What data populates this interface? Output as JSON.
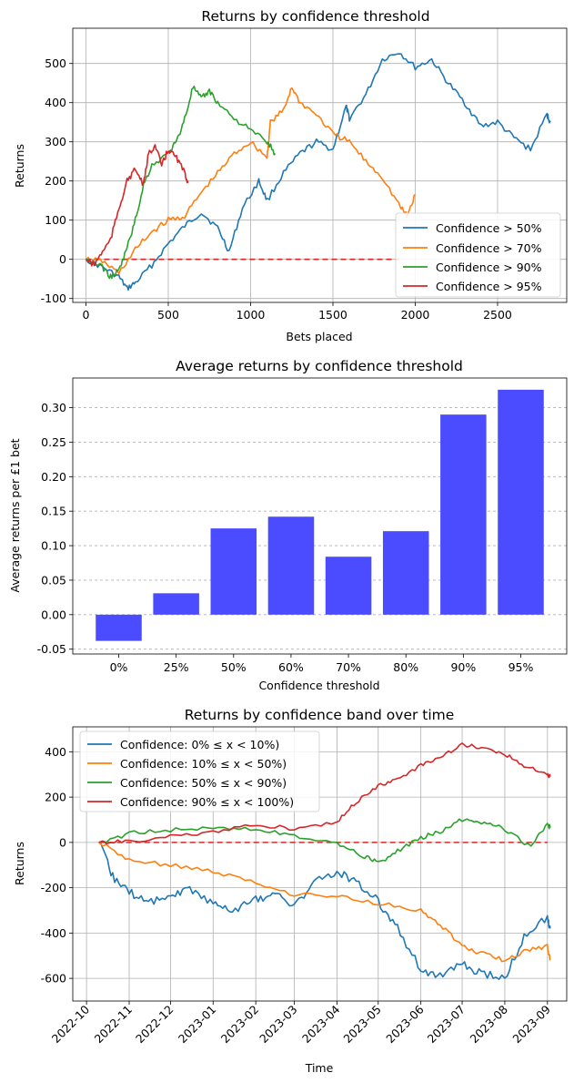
{
  "chart_data": [
    {
      "type": "line",
      "title": "Returns by confidence threshold",
      "xlabel": "Bets placed",
      "ylabel": "Returns",
      "xlim": [
        -80,
        2920
      ],
      "ylim": [
        -110,
        590
      ],
      "xticks": [
        0,
        500,
        1000,
        1500,
        2000,
        2500
      ],
      "yticks": [
        -100,
        0,
        100,
        200,
        300,
        400,
        500
      ],
      "grid": true,
      "legend_position": "lower-right",
      "colors": [
        "#1f77b4",
        "#ff7f0e",
        "#2ca02c",
        "#d62728"
      ],
      "zero_line": {
        "color": "#d62728",
        "style": "dashed",
        "x": [
          0,
          1900
        ],
        "y": 0
      },
      "series": [
        {
          "name": "Confidence > 50%",
          "x": [
            0,
            100,
            200,
            250,
            300,
            400,
            500,
            600,
            700,
            800,
            870,
            950,
            1050,
            1100,
            1200,
            1300,
            1400,
            1500,
            1580,
            1600,
            1700,
            1800,
            1900,
            2000,
            2100,
            2200,
            2300,
            2400,
            2500,
            2600,
            2700,
            2800,
            2820
          ],
          "values": [
            0,
            -20,
            -45,
            -75,
            -60,
            -15,
            40,
            85,
            120,
            80,
            20,
            130,
            200,
            150,
            220,
            270,
            300,
            280,
            390,
            360,
            420,
            510,
            530,
            490,
            510,
            450,
            400,
            340,
            350,
            310,
            280,
            370,
            350
          ]
        },
        {
          "name": "Confidence > 70%",
          "x": [
            0,
            100,
            200,
            300,
            400,
            500,
            600,
            700,
            800,
            900,
            1000,
            1100,
            1120,
            1200,
            1250,
            1300,
            1400,
            1500,
            1600,
            1700,
            1800,
            1900,
            1950,
            2000
          ],
          "values": [
            0,
            -5,
            -35,
            25,
            70,
            100,
            110,
            170,
            220,
            270,
            300,
            260,
            350,
            380,
            440,
            400,
            370,
            320,
            300,
            250,
            210,
            140,
            110,
            165
          ]
        },
        {
          "name": "Confidence > 90%",
          "x": [
            0,
            100,
            150,
            200,
            250,
            300,
            350,
            400,
            500,
            550,
            600,
            650,
            700,
            750,
            800,
            900,
            1000,
            1100,
            1150
          ],
          "values": [
            0,
            -20,
            -45,
            -30,
            30,
            100,
            190,
            240,
            270,
            300,
            360,
            440,
            410,
            430,
            400,
            360,
            330,
            300,
            270
          ]
        },
        {
          "name": "Confidence > 95%",
          "x": [
            0,
            50,
            100,
            150,
            200,
            250,
            300,
            350,
            380,
            420,
            460,
            500,
            550,
            600,
            620
          ],
          "values": [
            0,
            -15,
            20,
            50,
            130,
            200,
            230,
            190,
            270,
            290,
            240,
            280,
            260,
            220,
            195
          ]
        }
      ]
    },
    {
      "type": "bar",
      "title": "Average returns by confidence threshold",
      "xlabel": "Confidence threshold",
      "ylabel": "Average returns per £1 bet",
      "categories": [
        "0%",
        "25%",
        "50%",
        "60%",
        "70%",
        "80%",
        "90%",
        "95%"
      ],
      "values": [
        -0.038,
        0.031,
        0.125,
        0.142,
        0.084,
        0.121,
        0.29,
        0.326
      ],
      "ylim": [
        -0.057,
        0.343
      ],
      "yticks": [
        "-0.05",
        "0.00",
        "0.05",
        "0.10",
        "0.15",
        "0.20",
        "0.25",
        "0.30"
      ],
      "grid": "y-dashed",
      "color": "#4b4bff"
    },
    {
      "type": "line",
      "title": "Returns by confidence band over time",
      "xlabel": "Time",
      "ylabel": "Returns",
      "xlim": [
        "2022-09-21",
        "2023-09-15"
      ],
      "ylim": [
        -700,
        510
      ],
      "xticks": [
        "2022-10",
        "2022-11",
        "2022-12",
        "2023-01",
        "2023-02",
        "2023-03",
        "2023-04",
        "2023-05",
        "2023-06",
        "2023-07",
        "2023-08",
        "2023-09"
      ],
      "yticks": [
        -600,
        -400,
        -200,
        0,
        200,
        400
      ],
      "grid": true,
      "legend_position": "upper-left",
      "colors": [
        "#1f77b4",
        "#ff7f0e",
        "#2ca02c",
        "#d62728"
      ],
      "zero_line": {
        "color": "#d62728",
        "style": "dashed",
        "x": [
          "2022-10-10",
          "2023-09-01"
        ],
        "y": 0
      },
      "series": [
        {
          "name": "Confidence: 0% ≤ x < 10%)",
          "x": [
            "2022-10-10",
            "2022-10-20",
            "2022-11-01",
            "2022-11-15",
            "2022-12-01",
            "2022-12-15",
            "2023-01-01",
            "2023-01-15",
            "2023-02-01",
            "2023-02-15",
            "2023-03-01",
            "2023-03-15",
            "2023-04-01",
            "2023-04-15",
            "2023-05-01",
            "2023-05-15",
            "2023-06-01",
            "2023-06-15",
            "2023-07-01",
            "2023-07-15",
            "2023-08-01",
            "2023-08-15",
            "2023-09-01",
            "2023-09-03"
          ],
          "values": [
            0,
            -150,
            -220,
            -260,
            -240,
            -200,
            -270,
            -300,
            -250,
            -230,
            -280,
            -180,
            -130,
            -170,
            -260,
            -380,
            -560,
            -590,
            -540,
            -580,
            -600,
            -420,
            -330,
            -380
          ]
        },
        {
          "name": "Confidence: 10% ≤ x < 50%)",
          "x": [
            "2022-10-10",
            "2022-11-01",
            "2022-12-01",
            "2023-01-01",
            "2023-02-01",
            "2023-03-01",
            "2023-04-01",
            "2023-05-01",
            "2023-06-01",
            "2023-06-15",
            "2023-07-01",
            "2023-07-15",
            "2023-08-01",
            "2023-08-15",
            "2023-09-01",
            "2023-09-03"
          ],
          "values": [
            0,
            -80,
            -100,
            -130,
            -180,
            -230,
            -240,
            -270,
            -300,
            -360,
            -460,
            -490,
            -520,
            -480,
            -460,
            -520
          ]
        },
        {
          "name": "Confidence: 50% ≤ x < 90%)",
          "x": [
            "2022-10-10",
            "2022-11-01",
            "2022-12-01",
            "2023-01-01",
            "2023-02-01",
            "2023-03-01",
            "2023-04-01",
            "2023-04-20",
            "2023-05-01",
            "2023-05-15",
            "2023-06-01",
            "2023-06-15",
            "2023-07-01",
            "2023-07-15",
            "2023-08-01",
            "2023-08-20",
            "2023-09-01",
            "2023-09-03"
          ],
          "values": [
            0,
            40,
            55,
            70,
            60,
            30,
            0,
            -60,
            -90,
            -40,
            20,
            50,
            100,
            90,
            60,
            -20,
            80,
            65
          ]
        },
        {
          "name": "Confidence: 90% ≤ x < 100%)",
          "x": [
            "2022-10-10",
            "2022-11-01",
            "2022-12-01",
            "2023-01-01",
            "2023-02-01",
            "2023-03-01",
            "2023-04-01",
            "2023-04-15",
            "2023-05-01",
            "2023-05-15",
            "2023-06-01",
            "2023-06-15",
            "2023-07-01",
            "2023-07-15",
            "2023-08-01",
            "2023-08-15",
            "2023-09-01",
            "2023-09-03"
          ],
          "values": [
            0,
            5,
            25,
            45,
            80,
            60,
            90,
            180,
            250,
            280,
            340,
            380,
            430,
            420,
            390,
            340,
            300,
            290
          ]
        }
      ]
    }
  ]
}
